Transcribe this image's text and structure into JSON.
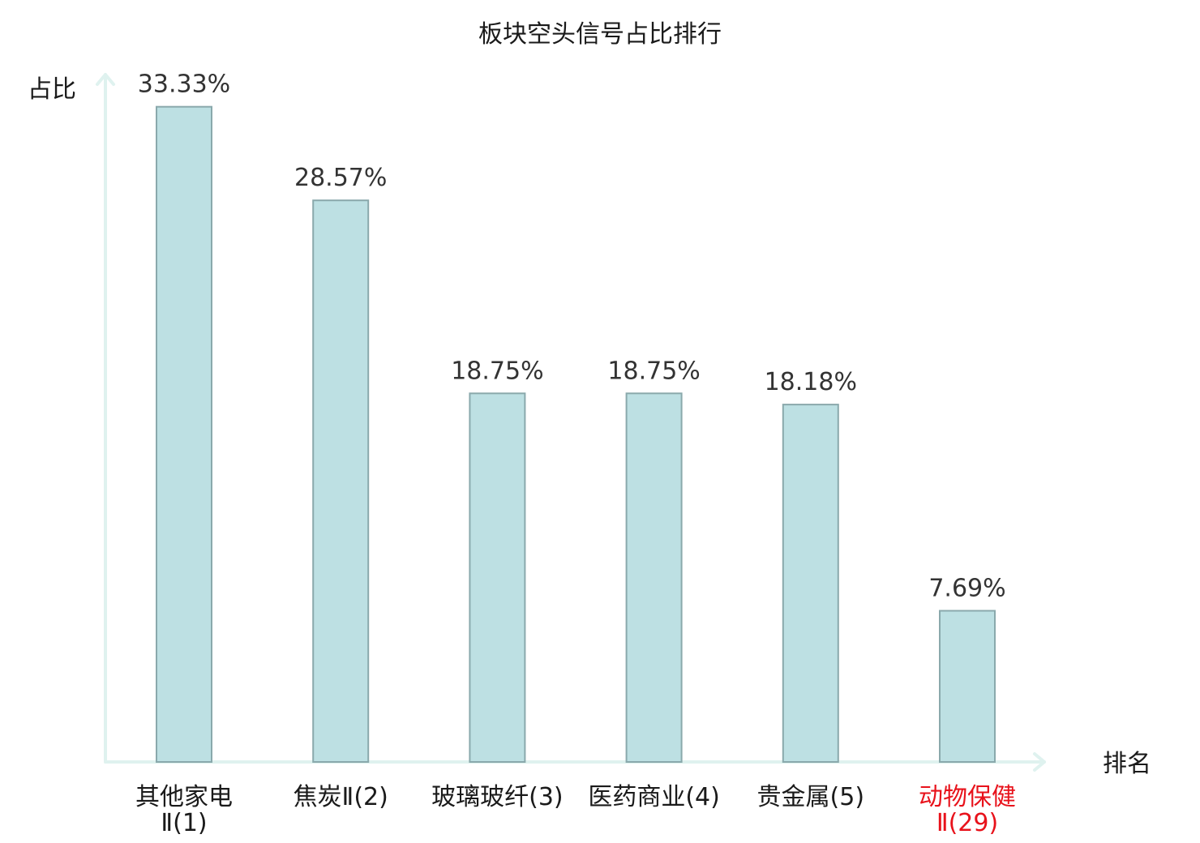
{
  "chart_data": {
    "type": "bar",
    "title": "板块空头信号占比排行",
    "ylabel": "占比",
    "xlabel": "排名",
    "ylim": [
      0,
      35
    ],
    "grid": false,
    "bar_color": "#bde0e3",
    "bar_border_color": "#8aa9ac",
    "axis_color": "#dff2ef",
    "highlight_color": "#e8121b",
    "categories": [
      {
        "lines": [
          "其他家电",
          "Ⅱ(1)"
        ],
        "highlight": false
      },
      {
        "lines": [
          "焦炭Ⅱ(2)"
        ],
        "highlight": false
      },
      {
        "lines": [
          "玻璃玻纤(3)"
        ],
        "highlight": false
      },
      {
        "lines": [
          "医药商业(4)"
        ],
        "highlight": false
      },
      {
        "lines": [
          "贵金属(5)"
        ],
        "highlight": false
      },
      {
        "lines": [
          "动物保健",
          "Ⅱ(29)"
        ],
        "highlight": true
      }
    ],
    "values": [
      33.33,
      28.57,
      18.75,
      18.75,
      18.18,
      7.69
    ],
    "value_labels": [
      "33.33%",
      "28.57%",
      "18.75%",
      "18.75%",
      "18.18%",
      "7.69%"
    ]
  }
}
